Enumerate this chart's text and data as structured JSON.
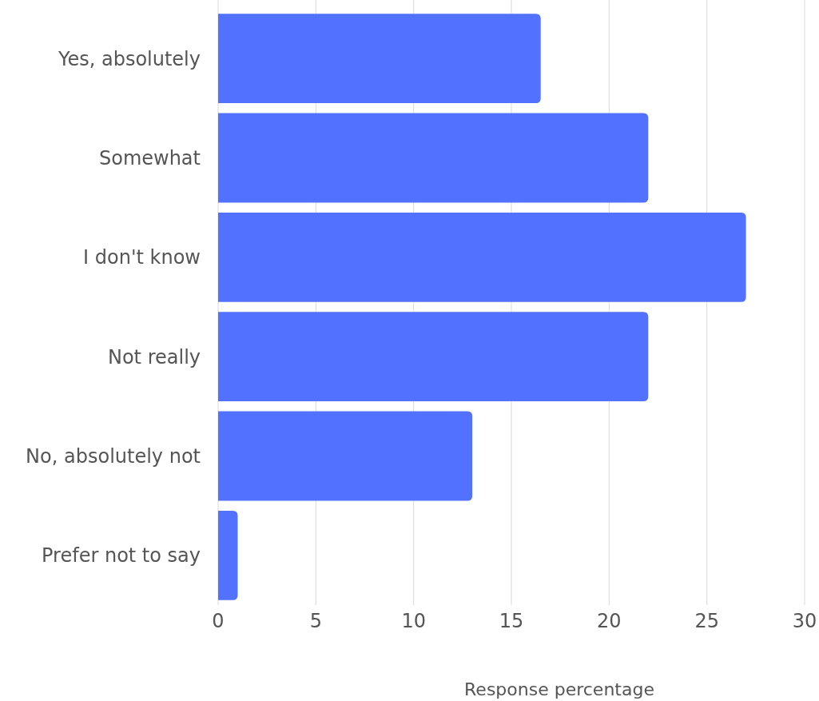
{
  "chart_data": {
    "type": "bar",
    "orientation": "horizontal",
    "xlabel": "Response percentage",
    "categories": [
      "Yes, absolutely",
      "Somewhat",
      "I don't know",
      "Not really",
      "No, absolutely not",
      "Prefer not to say"
    ],
    "values": [
      16.5,
      22,
      27,
      22,
      13,
      1
    ],
    "color": "#5271ff",
    "xlim": [
      0,
      30
    ],
    "xticks": [
      0,
      5,
      10,
      15,
      20,
      25,
      30
    ],
    "grid": "x"
  }
}
